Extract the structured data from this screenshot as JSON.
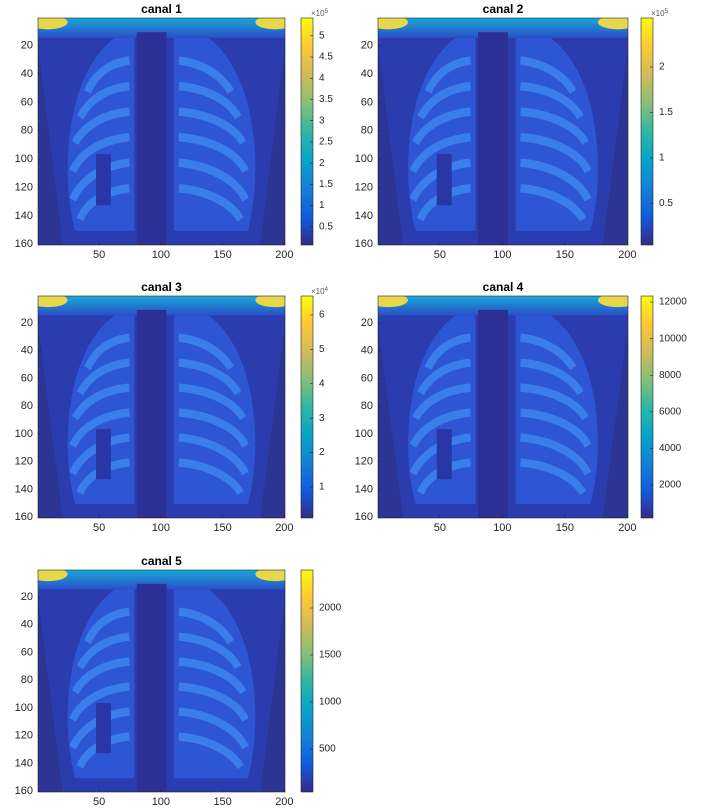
{
  "chart_data": [
    {
      "type": "image",
      "title": "canal 1",
      "xlim": [
        0.5,
        200.5
      ],
      "xticks": [
        50,
        100,
        150,
        200
      ],
      "ylim": [
        0.5,
        160.5
      ],
      "yticks": [
        20,
        40,
        60,
        80,
        100,
        120,
        140,
        160
      ],
      "y_reversed": true,
      "colormap": "parula",
      "clim": [
        0.07,
        5.42
      ],
      "cticks": [
        0.5,
        1,
        1.5,
        2,
        2.5,
        3,
        3.5,
        4,
        4.5,
        5
      ],
      "cbar_exponent": {
        "base": "×10",
        "power": "5"
      }
    },
    {
      "type": "image",
      "title": "canal 2",
      "xlim": [
        0.5,
        200.5
      ],
      "xticks": [
        50,
        100,
        150,
        200
      ],
      "ylim": [
        0.5,
        160.5
      ],
      "yticks": [
        20,
        40,
        60,
        80,
        100,
        120,
        140,
        160
      ],
      "y_reversed": true,
      "colormap": "parula",
      "clim": [
        0.04,
        2.54
      ],
      "cticks": [
        0.5,
        1,
        1.5,
        2
      ],
      "cbar_exponent": {
        "base": "×10",
        "power": "5"
      }
    },
    {
      "type": "image",
      "title": "canal 3",
      "xlim": [
        0.5,
        200.5
      ],
      "xticks": [
        50,
        100,
        150,
        200
      ],
      "ylim": [
        0.5,
        160.5
      ],
      "yticks": [
        20,
        40,
        60,
        80,
        100,
        120,
        140,
        160
      ],
      "y_reversed": true,
      "colormap": "parula",
      "clim": [
        0.1,
        6.55
      ],
      "cticks": [
        1,
        2,
        3,
        4,
        5,
        6
      ],
      "cbar_exponent": {
        "base": "×10",
        "power": "4"
      }
    },
    {
      "type": "image",
      "title": "canal 4",
      "xlim": [
        0.5,
        200.5
      ],
      "xticks": [
        50,
        100,
        150,
        200
      ],
      "ylim": [
        0.5,
        160.5
      ],
      "yticks": [
        20,
        40,
        60,
        80,
        100,
        120,
        140,
        160
      ],
      "y_reversed": true,
      "colormap": "parula",
      "clim": [
        200,
        12330
      ],
      "cticks": [
        2000,
        4000,
        6000,
        8000,
        10000,
        12000
      ]
    },
    {
      "type": "image",
      "title": "canal 5",
      "xlim": [
        0.5,
        200.5
      ],
      "xticks": [
        50,
        100,
        150,
        200
      ],
      "ylim": [
        0.5,
        160.5
      ],
      "yticks": [
        20,
        40,
        60,
        80,
        100,
        120,
        140,
        160
      ],
      "y_reversed": true,
      "colormap": "parula",
      "clim": [
        43,
        2404
      ],
      "cticks": [
        500,
        1000,
        1500,
        2000
      ]
    }
  ]
}
